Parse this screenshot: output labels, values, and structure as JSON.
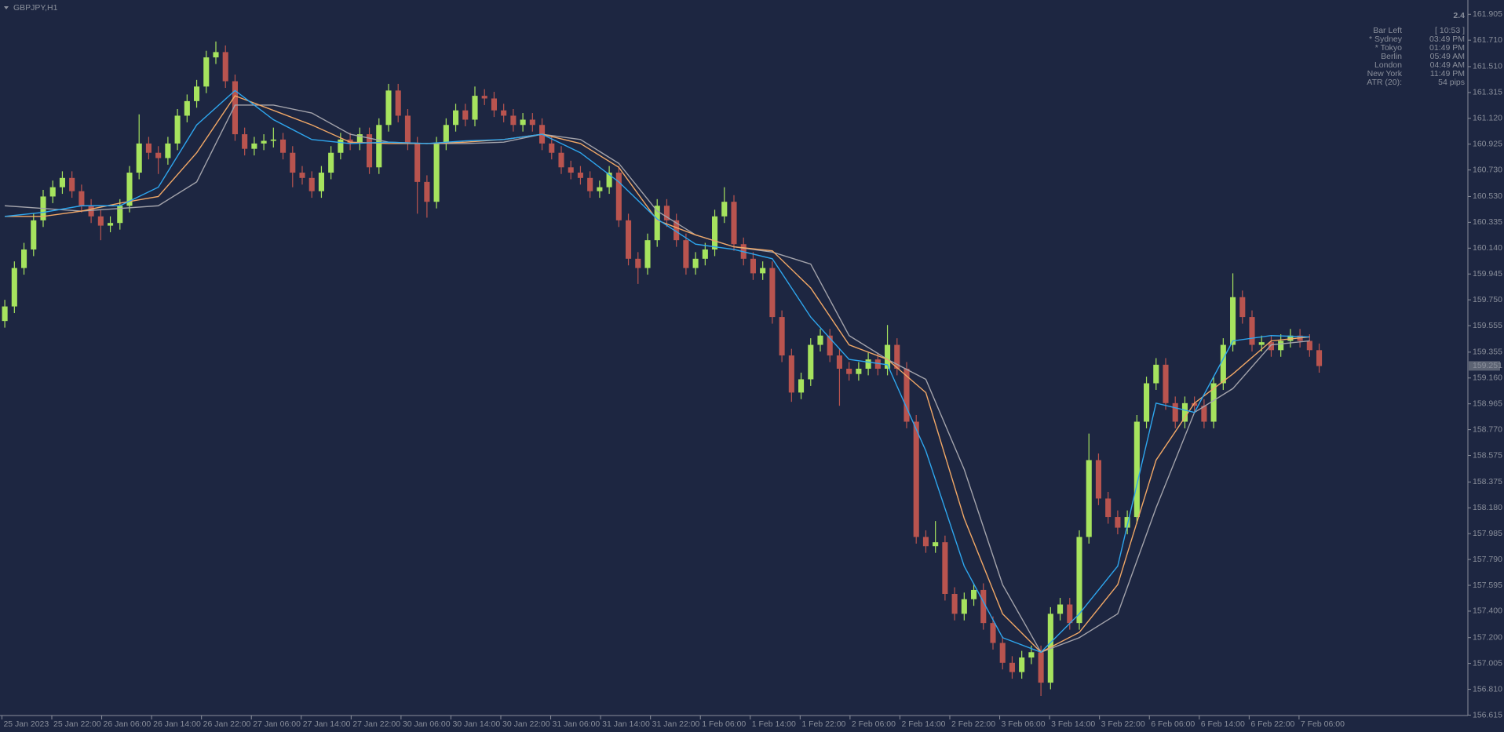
{
  "chart_data": {
    "type": "candlestick",
    "title": "GBPJPY,H1",
    "up_color": "#a6e35e",
    "down_color": "#b9544f",
    "candles": {
      "open": [
        159.59,
        159.7,
        159.99,
        160.13,
        160.35,
        160.53,
        160.6,
        160.67,
        160.57,
        160.46,
        160.38,
        160.31,
        160.33,
        160.46,
        160.71,
        160.93,
        160.86,
        160.82,
        160.93,
        161.14,
        161.25,
        161.36,
        161.58,
        161.62,
        161.4,
        161.0,
        160.89,
        160.93,
        160.95,
        160.96,
        160.86,
        160.71,
        160.67,
        160.57,
        160.71,
        160.86,
        160.96,
        160.93,
        161.0,
        160.75,
        161.07,
        161.33,
        161.14,
        160.93,
        160.64,
        160.49,
        160.93,
        161.07,
        161.18,
        161.11,
        161.29,
        161.27,
        161.18,
        161.14,
        161.07,
        161.11,
        161.07,
        160.93,
        160.86,
        160.75,
        160.71,
        160.67,
        160.57,
        160.6,
        160.71,
        160.35,
        160.06,
        159.99,
        160.2,
        160.46,
        160.35,
        160.2,
        159.99,
        160.06,
        160.13,
        160.38,
        160.49,
        160.17,
        160.06,
        159.95,
        159.99,
        159.62,
        159.33,
        159.05,
        159.15,
        159.41,
        159.48,
        159.33,
        159.23,
        159.19,
        159.23,
        159.3,
        159.23,
        159.41,
        159.23,
        158.83,
        157.96,
        157.89,
        157.92,
        157.53,
        157.38,
        157.49,
        157.56,
        157.31,
        157.16,
        157.01,
        156.94,
        157.05,
        157.09,
        156.86,
        157.38,
        157.45,
        157.31,
        157.96,
        158.54,
        158.25,
        158.11,
        158.03,
        158.11,
        158.83,
        159.12,
        159.26,
        158.97,
        158.83,
        158.97,
        158.95,
        158.83,
        159.12,
        159.41,
        159.77,
        159.62,
        159.41,
        159.43,
        159.37,
        159.44,
        159.48,
        159.44,
        159.37
      ],
      "high": [
        159.75,
        160.04,
        160.18,
        160.4,
        160.58,
        160.65,
        160.72,
        160.72,
        160.62,
        160.51,
        160.43,
        160.38,
        160.51,
        160.76,
        161.15,
        160.98,
        160.91,
        160.98,
        161.19,
        161.3,
        161.41,
        161.63,
        161.7,
        161.67,
        161.45,
        161.05,
        160.98,
        161.0,
        161.05,
        161.01,
        160.91,
        160.76,
        160.72,
        160.76,
        160.91,
        161.01,
        161.01,
        161.05,
        161.05,
        161.12,
        161.38,
        161.38,
        161.19,
        160.98,
        160.69,
        160.98,
        161.12,
        161.23,
        161.23,
        161.36,
        161.34,
        161.32,
        161.23,
        161.19,
        161.16,
        161.16,
        161.12,
        160.98,
        160.91,
        160.8,
        160.76,
        160.72,
        160.65,
        160.76,
        160.76,
        160.4,
        160.11,
        160.25,
        160.51,
        160.51,
        160.4,
        160.25,
        160.11,
        160.18,
        160.43,
        160.6,
        160.54,
        160.22,
        160.11,
        160.04,
        160.04,
        159.67,
        159.38,
        159.2,
        159.46,
        159.53,
        159.53,
        159.38,
        159.28,
        159.28,
        159.35,
        159.35,
        159.56,
        159.46,
        159.28,
        158.88,
        158.01,
        158.08,
        157.97,
        157.58,
        157.54,
        157.61,
        157.61,
        157.36,
        157.21,
        157.06,
        157.1,
        157.14,
        157.14,
        157.43,
        157.5,
        157.5,
        158.01,
        158.74,
        158.59,
        158.3,
        158.16,
        158.16,
        158.88,
        159.17,
        159.31,
        159.31,
        159.02,
        159.02,
        159.02,
        159.0,
        159.17,
        159.46,
        159.95,
        159.82,
        159.67,
        159.48,
        159.48,
        159.49,
        159.53,
        159.53,
        159.49,
        159.42
      ],
      "low": [
        159.54,
        159.65,
        159.94,
        160.08,
        160.3,
        160.48,
        160.55,
        160.52,
        160.41,
        160.33,
        160.2,
        160.26,
        160.28,
        160.41,
        160.66,
        160.81,
        160.7,
        160.77,
        160.88,
        161.09,
        161.2,
        161.31,
        161.53,
        161.35,
        160.95,
        160.84,
        160.84,
        160.88,
        160.9,
        160.81,
        160.6,
        160.62,
        160.52,
        160.52,
        160.66,
        160.81,
        160.88,
        160.88,
        160.7,
        160.7,
        161.02,
        161.09,
        160.88,
        160.4,
        160.37,
        160.44,
        160.88,
        161.02,
        161.06,
        161.06,
        161.22,
        161.13,
        161.09,
        161.02,
        161.02,
        161.02,
        160.88,
        160.81,
        160.7,
        160.66,
        160.62,
        160.52,
        160.52,
        160.55,
        160.3,
        160.01,
        159.87,
        159.94,
        160.15,
        160.3,
        160.15,
        159.94,
        159.94,
        160.01,
        160.08,
        160.33,
        160.12,
        160.01,
        159.9,
        159.9,
        159.57,
        159.28,
        158.98,
        159.0,
        159.1,
        159.36,
        159.28,
        158.95,
        159.14,
        159.14,
        159.18,
        159.18,
        159.18,
        159.18,
        158.78,
        157.91,
        157.84,
        157.84,
        157.48,
        157.33,
        157.33,
        157.44,
        157.26,
        157.11,
        156.96,
        156.89,
        156.89,
        157.0,
        156.76,
        156.81,
        157.33,
        157.26,
        157.26,
        157.91,
        158.2,
        158.06,
        157.98,
        157.98,
        158.06,
        158.78,
        159.07,
        158.92,
        158.78,
        158.78,
        158.9,
        158.78,
        158.78,
        159.07,
        159.36,
        159.57,
        159.36,
        159.36,
        159.32,
        159.32,
        159.39,
        159.39,
        159.32,
        159.2
      ],
      "close": [
        159.7,
        159.99,
        160.13,
        160.35,
        160.53,
        160.6,
        160.67,
        160.57,
        160.46,
        160.38,
        160.31,
        160.33,
        160.46,
        160.71,
        160.93,
        160.86,
        160.82,
        160.93,
        161.14,
        161.25,
        161.36,
        161.58,
        161.62,
        161.4,
        161.0,
        160.89,
        160.93,
        160.95,
        160.96,
        160.86,
        160.71,
        160.67,
        160.57,
        160.71,
        160.86,
        160.96,
        160.93,
        161.0,
        160.75,
        161.07,
        161.33,
        161.14,
        160.93,
        160.64,
        160.49,
        160.93,
        161.07,
        161.18,
        161.11,
        161.29,
        161.27,
        161.18,
        161.14,
        161.07,
        161.11,
        161.07,
        160.93,
        160.86,
        160.75,
        160.71,
        160.67,
        160.57,
        160.6,
        160.71,
        160.35,
        160.06,
        159.99,
        160.2,
        160.46,
        160.35,
        160.2,
        159.99,
        160.06,
        160.13,
        160.38,
        160.49,
        160.17,
        160.06,
        159.95,
        159.99,
        159.62,
        159.33,
        159.05,
        159.15,
        159.41,
        159.48,
        159.33,
        159.23,
        159.19,
        159.23,
        159.3,
        159.23,
        159.41,
        159.23,
        158.83,
        157.96,
        157.89,
        157.92,
        157.53,
        157.38,
        157.49,
        157.56,
        157.31,
        157.16,
        157.01,
        156.94,
        157.05,
        157.09,
        156.86,
        157.38,
        157.45,
        157.31,
        157.96,
        158.54,
        158.25,
        158.11,
        158.03,
        158.11,
        158.83,
        159.12,
        159.26,
        158.97,
        158.83,
        158.97,
        158.95,
        158.83,
        159.12,
        159.41,
        159.77,
        159.62,
        159.41,
        159.43,
        159.37,
        159.44,
        159.48,
        159.44,
        159.37,
        159.25
      ]
    },
    "line_x": [
      0,
      4,
      8,
      12,
      16,
      20,
      24,
      28,
      32,
      36,
      40,
      44,
      48,
      52,
      56,
      60,
      64,
      68,
      72,
      76,
      80,
      84,
      88,
      92,
      96,
      100,
      104,
      108,
      112,
      116,
      120,
      124,
      128,
      132,
      136
    ],
    "lines": [
      {
        "color": "#a3a3ab",
        "values": [
          160.46,
          160.44,
          160.42,
          160.44,
          160.46,
          160.64,
          161.22,
          161.22,
          161.16,
          161.0,
          160.94,
          160.93,
          160.93,
          160.94,
          161.0,
          160.96,
          160.78,
          160.42,
          160.24,
          160.15,
          160.11,
          160.02,
          159.48,
          159.3,
          159.15,
          158.47,
          157.6,
          157.09,
          157.2,
          157.38,
          158.18,
          158.9,
          159.08,
          159.41,
          159.44
        ]
      },
      {
        "color": "#f2a866",
        "values": [
          160.38,
          160.38,
          160.42,
          160.48,
          160.53,
          160.86,
          161.29,
          161.18,
          161.07,
          160.94,
          160.93,
          160.93,
          160.94,
          160.96,
          161.0,
          160.93,
          160.75,
          160.35,
          160.24,
          160.15,
          160.12,
          159.84,
          159.41,
          159.3,
          159.05,
          158.1,
          157.38,
          157.09,
          157.24,
          157.6,
          158.54,
          158.97,
          159.19,
          159.44,
          159.47
        ]
      },
      {
        "color": "#2ea6ee",
        "values": [
          160.38,
          160.41,
          160.46,
          160.46,
          160.6,
          161.07,
          161.33,
          161.11,
          160.96,
          160.93,
          160.94,
          160.93,
          160.95,
          160.96,
          161.0,
          160.86,
          160.64,
          160.36,
          160.17,
          160.13,
          160.06,
          159.62,
          159.3,
          159.26,
          158.61,
          157.74,
          157.2,
          157.09,
          157.38,
          157.74,
          158.97,
          158.9,
          159.44,
          159.48,
          159.47
        ]
      }
    ],
    "xlim": [
      -0.5,
      152.5
    ],
    "xticks": [
      {
        "value": -0.3,
        "label": "25 Jan 2023"
      },
      {
        "value": 4.9,
        "label": "25 Jan 22:00"
      },
      {
        "value": 10.1,
        "label": "26 Jan 06:00"
      },
      {
        "value": 15.3,
        "label": "26 Jan 14:00"
      },
      {
        "value": 20.5,
        "label": "26 Jan 22:00"
      },
      {
        "value": 25.7,
        "label": "27 Jan 06:00"
      },
      {
        "value": 30.9,
        "label": "27 Jan 14:00"
      },
      {
        "value": 36.1,
        "label": "27 Jan 22:00"
      },
      {
        "value": 41.3,
        "label": "30 Jan 06:00"
      },
      {
        "value": 46.5,
        "label": "30 Jan 14:00"
      },
      {
        "value": 51.7,
        "label": "30 Jan 22:00"
      },
      {
        "value": 56.9,
        "label": "31 Jan 06:00"
      },
      {
        "value": 62.1,
        "label": "31 Jan 14:00"
      },
      {
        "value": 67.3,
        "label": "31 Jan 22:00"
      },
      {
        "value": 72.5,
        "label": "1 Feb 06:00"
      },
      {
        "value": 77.7,
        "label": "1 Feb 14:00"
      },
      {
        "value": 82.9,
        "label": "1 Feb 22:00"
      },
      {
        "value": 88.1,
        "label": "2 Feb 06:00"
      },
      {
        "value": 93.3,
        "label": "2 Feb 14:00"
      },
      {
        "value": 98.5,
        "label": "2 Feb 22:00"
      },
      {
        "value": 103.7,
        "label": "3 Feb 06:00"
      },
      {
        "value": 108.9,
        "label": "3 Feb 14:00"
      },
      {
        "value": 114.1,
        "label": "3 Feb 22:00"
      },
      {
        "value": 119.3,
        "label": "6 Feb 06:00"
      },
      {
        "value": 124.5,
        "label": "6 Feb 14:00"
      },
      {
        "value": 129.7,
        "label": "6 Feb 22:00"
      },
      {
        "value": 134.9,
        "label": "7 Feb 06:00"
      }
    ],
    "ylim": [
      156.612,
      161.999
    ],
    "yticks": [
      161.905,
      {
        "value": 161.71,
        "label": "161.710"
      },
      {
        "value": 161.51,
        "label": "161.510"
      },
      161.315,
      {
        "value": 161.12,
        "label": "161.120"
      },
      160.925,
      {
        "value": 160.73,
        "label": "160.730"
      },
      {
        "value": 160.53,
        "label": "160.530"
      },
      160.335,
      {
        "value": 160.14,
        "label": "160.140"
      },
      159.945,
      {
        "value": 159.75,
        "label": "159.750"
      },
      159.555,
      159.355,
      {
        "value": 159.16,
        "label": "159.160"
      },
      158.965,
      {
        "value": 158.77,
        "label": "158.770"
      },
      158.575,
      158.375,
      {
        "value": 158.18,
        "label": "158.180"
      },
      157.985,
      {
        "value": 157.79,
        "label": "157.790"
      },
      157.595,
      {
        "value": 157.4,
        "label": "157.400"
      },
      {
        "value": 157.2,
        "label": "157.200"
      },
      157.005,
      {
        "value": 156.81,
        "label": "156.810"
      },
      156.615
    ],
    "last_price": 159.251,
    "info_panel": {
      "spread": 2.4,
      "rows": [
        {
          "label": "Bar Left",
          "value": "[ 10:53 ]",
          "color": "#8a8f9b"
        },
        {
          "label": "* Sydney",
          "value": "03:49 PM",
          "color": "#e8323c"
        },
        {
          "label": "* Tokyo",
          "value": "01:49 PM",
          "color": "#e8323c"
        },
        {
          "label": "Berlin",
          "value": "05:49 AM",
          "color": "#8a8f9b"
        },
        {
          "label": "London",
          "value": "04:49 AM",
          "color": "#8a8f9b"
        },
        {
          "label": "New York",
          "value": "11:49 PM",
          "color": "#8a8f9b"
        },
        {
          "label": "ATR (20):",
          "value": "54 pips",
          "color": "#8a8f9b"
        }
      ]
    }
  }
}
